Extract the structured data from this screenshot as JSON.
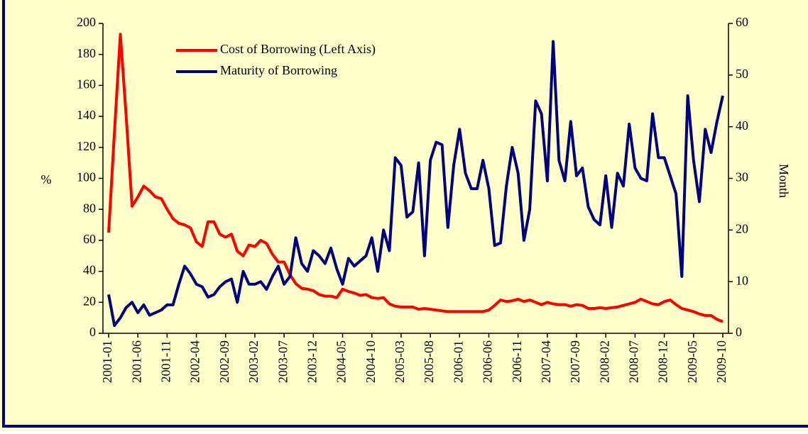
{
  "chart_data": {
    "type": "line",
    "y_label": "%",
    "y2_label": "Month",
    "categories": [
      "2001-01",
      null,
      null,
      null,
      null,
      "2001-06",
      null,
      null,
      null,
      null,
      "2001-11",
      null,
      null,
      null,
      null,
      "2002-04",
      null,
      null,
      null,
      null,
      "2002-09",
      null,
      null,
      null,
      null,
      "2003-02",
      null,
      null,
      null,
      null,
      "2003-07",
      null,
      null,
      null,
      null,
      "2003-12",
      null,
      null,
      null,
      null,
      "2004-05",
      null,
      null,
      null,
      null,
      "2004-10",
      null,
      null,
      null,
      null,
      "2005-03",
      null,
      null,
      null,
      null,
      "2005-08",
      null,
      null,
      null,
      null,
      "2006-01",
      null,
      null,
      null,
      null,
      "2006-06",
      null,
      null,
      null,
      null,
      "2006-11",
      null,
      null,
      null,
      null,
      "2007-04",
      null,
      null,
      null,
      null,
      "2007-09",
      null,
      null,
      null,
      null,
      "2008-02",
      null,
      null,
      null,
      null,
      "2008-07",
      null,
      null,
      null,
      null,
      "2008-12",
      null,
      null,
      null,
      null,
      "2009-05",
      null,
      null,
      null,
      null,
      "2009-10"
    ],
    "series": [
      {
        "name": "Cost of Borrowing (Left Axis)",
        "color": "#ff0000",
        "axis": "y",
        "values": [
          65,
          130,
          193,
          140,
          82,
          88,
          95,
          92,
          88,
          87,
          80,
          74,
          71,
          70,
          68,
          59,
          56,
          72,
          72,
          64,
          62,
          64,
          53,
          50,
          57,
          56,
          60,
          58,
          51,
          46,
          46,
          38,
          32,
          29,
          28.5,
          27.5,
          25,
          24,
          24,
          23,
          28.5,
          27,
          26,
          24.5,
          25,
          23,
          22.5,
          23,
          19,
          17.5,
          17,
          17,
          17,
          15.5,
          16,
          15.5,
          15,
          14.5,
          14,
          14,
          14,
          14,
          14,
          14,
          14,
          15,
          18,
          21.5,
          20.5,
          21,
          22,
          20.5,
          21.5,
          20,
          18.5,
          20,
          19,
          18.5,
          18.5,
          17.5,
          18.5,
          18,
          16,
          16,
          16.5,
          16,
          16.5,
          17,
          18,
          19,
          20,
          22,
          20.5,
          19,
          18.5,
          20.5,
          21.5,
          18.5,
          16,
          15,
          14,
          12.5,
          11.5,
          11.5,
          9,
          7.5
        ]
      },
      {
        "name": "Maturity of Borrowing",
        "color": "#000080",
        "axis": "y2",
        "values": [
          7.5,
          1.5,
          3,
          5,
          6,
          4,
          5.5,
          3.5,
          4,
          4.5,
          5.5,
          5.5,
          9.5,
          13,
          11.5,
          9.5,
          9,
          7,
          7.5,
          9,
          10,
          10.5,
          6,
          12,
          9.5,
          9.5,
          10,
          8.5,
          11,
          13,
          9.5,
          11,
          18.5,
          13.5,
          12,
          16,
          15,
          13.5,
          16.5,
          12.5,
          9.5,
          14.5,
          13,
          14,
          15,
          18.5,
          12,
          20,
          16,
          34,
          32.5,
          22.5,
          23.5,
          33,
          15,
          33.5,
          37,
          36.5,
          20.5,
          32.5,
          39.5,
          31,
          28,
          28,
          33.5,
          28,
          17,
          17.5,
          28.5,
          36,
          31,
          18,
          24,
          45,
          42.5,
          29.5,
          56.5,
          33.5,
          29.5,
          41,
          30.5,
          32,
          24.5,
          22,
          21,
          30.5,
          20.5,
          31,
          28.5,
          40.5,
          32,
          30,
          29.5,
          42.5,
          34,
          34,
          30.5,
          27,
          11,
          46,
          33.5,
          25.5,
          39.5,
          35,
          41,
          46
        ]
      }
    ],
    "ylim": [
      0,
      200
    ],
    "yticks": [
      0,
      20,
      40,
      60,
      80,
      100,
      120,
      140,
      160,
      180,
      200
    ],
    "y2lim": [
      0,
      60
    ],
    "y2ticks": [
      0,
      10,
      20,
      30,
      40,
      50,
      60
    ],
    "legend": "upper left",
    "background": "#ffffcc"
  }
}
